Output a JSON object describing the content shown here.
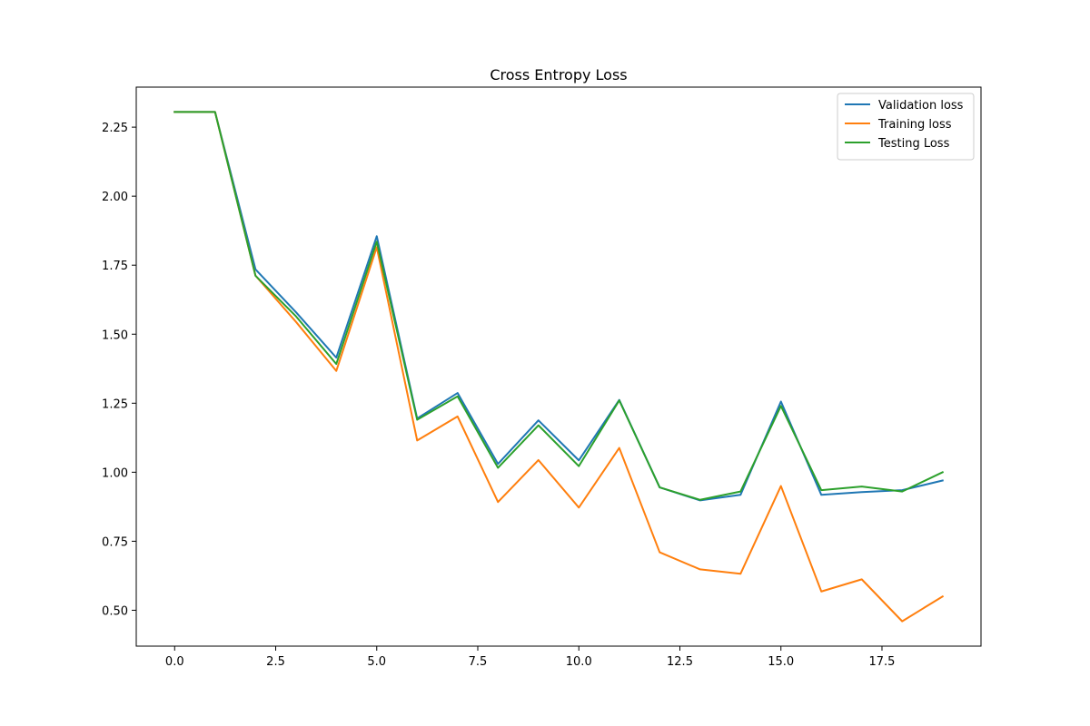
{
  "chart_data": {
    "type": "line",
    "title": "Cross Entropy Loss",
    "xlabel": "",
    "ylabel": "",
    "xlim": [
      -0.95,
      19.95
    ],
    "ylim": [
      0.37,
      2.395
    ],
    "xticks": [
      0,
      2.5,
      5,
      7.5,
      10,
      12.5,
      15,
      17.5
    ],
    "xtick_labels": [
      "0.0",
      "2.5",
      "5.0",
      "7.5",
      "10.0",
      "12.5",
      "15.0",
      "17.5"
    ],
    "yticks": [
      0.5,
      0.75,
      1.0,
      1.25,
      1.5,
      1.75,
      2.0,
      2.25
    ],
    "ytick_labels": [
      "0.50",
      "0.75",
      "1.00",
      "1.25",
      "1.50",
      "1.75",
      "2.00",
      "2.25"
    ],
    "grid": false,
    "legend_position": "top-right",
    "x": [
      0,
      1,
      2,
      3,
      4,
      5,
      6,
      7,
      8,
      9,
      10,
      11,
      12,
      13,
      14,
      15,
      16,
      17,
      18,
      19
    ],
    "series": [
      {
        "name": "Validation loss",
        "color": "#1f77b4",
        "values": [
          2.305,
          2.305,
          1.735,
          1.58,
          1.415,
          1.855,
          1.195,
          1.287,
          1.03,
          1.188,
          1.043,
          1.262,
          0.945,
          0.898,
          0.918,
          1.256,
          0.918,
          0.928,
          0.935,
          0.97
        ]
      },
      {
        "name": "Training loss",
        "color": "#ff7f0e",
        "values": [
          2.305,
          2.305,
          1.712,
          1.545,
          1.367,
          1.815,
          1.115,
          1.202,
          0.892,
          1.044,
          0.872,
          1.088,
          0.71,
          0.648,
          0.632,
          0.95,
          0.568,
          0.612,
          0.46,
          0.55
        ]
      },
      {
        "name": "Testing Loss",
        "color": "#2ca02c",
        "values": [
          2.305,
          2.305,
          1.712,
          1.565,
          1.392,
          1.835,
          1.19,
          1.275,
          1.016,
          1.17,
          1.022,
          1.26,
          0.945,
          0.9,
          0.93,
          1.24,
          0.935,
          0.948,
          0.93,
          1.0
        ]
      }
    ]
  }
}
